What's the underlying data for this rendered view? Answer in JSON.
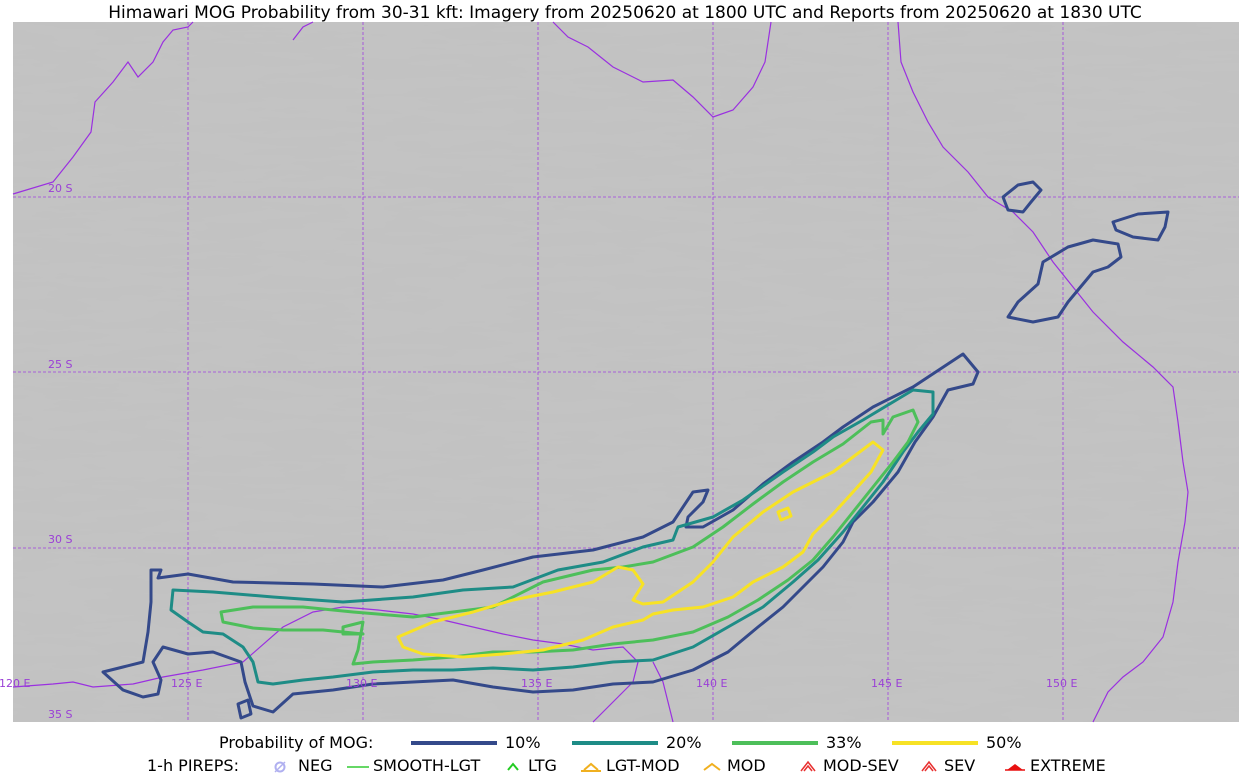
{
  "title": "Himawari MOG Probability from 30-31 kft: Imagery from 20250620 at 1800 UTC and Reports from 20250620 at 1830 UTC",
  "grid": {
    "lat_labels": [
      "20 S",
      "25 S",
      "30 S",
      "35 S"
    ],
    "lon_labels": [
      "120 E",
      "125 E",
      "130 E",
      "135 E",
      "140 E",
      "145 E",
      "150 E"
    ],
    "line_color": "#a040e0"
  },
  "probability_legend": {
    "heading": "Probability of MOG:",
    "items": [
      {
        "label": "10%",
        "color": "#34498a"
      },
      {
        "label": "20%",
        "color": "#1e8c86"
      },
      {
        "label": "33%",
        "color": "#4dbf5a"
      },
      {
        "label": "50%",
        "color": "#f7e225"
      }
    ]
  },
  "pireps_legend": {
    "heading": "1-h PIREPS:",
    "items": [
      {
        "label": "NEG",
        "icon": "neg-circle-icon",
        "color": "#b0b0f0"
      },
      {
        "label": "SMOOTH-LGT",
        "icon": "smooth-line-icon",
        "color": "#33cc33"
      },
      {
        "label": "LTG",
        "icon": "caret-icon",
        "color": "#22cc22"
      },
      {
        "label": "LGT-MOD",
        "icon": "caret-bar-icon",
        "color": "#f0b020"
      },
      {
        "label": "MOD",
        "icon": "caret-icon",
        "color": "#f0b020"
      },
      {
        "label": "MOD-SEV",
        "icon": "double-caret-icon",
        "color": "#e83030"
      },
      {
        "label": "SEV",
        "icon": "double-caret-icon",
        "color": "#e83030"
      },
      {
        "label": "EXTREME",
        "icon": "filled-triangle-icon",
        "color": "#e81010"
      }
    ]
  }
}
